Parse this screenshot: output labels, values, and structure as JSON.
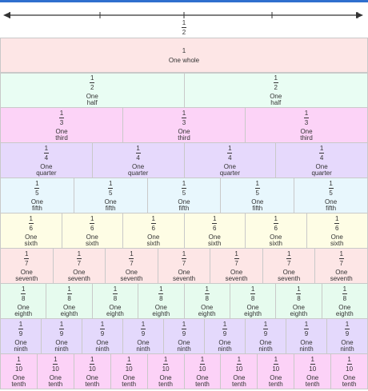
{
  "number_line": {
    "midpoint_numerator": "1",
    "midpoint_denominator": "2"
  },
  "whole": {
    "numerator": "1",
    "label": "One whole"
  },
  "rows": [
    {
      "num": "1",
      "den": "2",
      "label": [
        "One",
        "half"
      ],
      "color": "#e9fdf3"
    },
    {
      "num": "1",
      "den": "3",
      "label": [
        "One",
        "third"
      ],
      "color": "#fcd3f7"
    },
    {
      "num": "1",
      "den": "4",
      "label": [
        "One",
        "quarter"
      ],
      "color": "#e6d9fc"
    },
    {
      "num": "1",
      "den": "5",
      "label": [
        "One",
        "fifth"
      ],
      "color": "#e8f7fd"
    },
    {
      "num": "1",
      "den": "6",
      "label": [
        "One",
        "sixth"
      ],
      "color": "#fefde5"
    },
    {
      "num": "1",
      "den": "7",
      "label": [
        "One",
        "seventh"
      ],
      "color": "#fde6e6"
    },
    {
      "num": "1",
      "den": "8",
      "label": [
        "One",
        "eighth"
      ],
      "color": "#e6fbee"
    },
    {
      "num": "1",
      "den": "9",
      "label": [
        "One",
        "ninth"
      ],
      "color": "#e4d9fc"
    },
    {
      "num": "1",
      "den": "10",
      "label": [
        "One",
        "tenth"
      ],
      "color": "#fcd2f7"
    }
  ],
  "colors": {
    "whole": "#fde6e6",
    "topbar": "#2f6fce",
    "axis": "#333333"
  }
}
